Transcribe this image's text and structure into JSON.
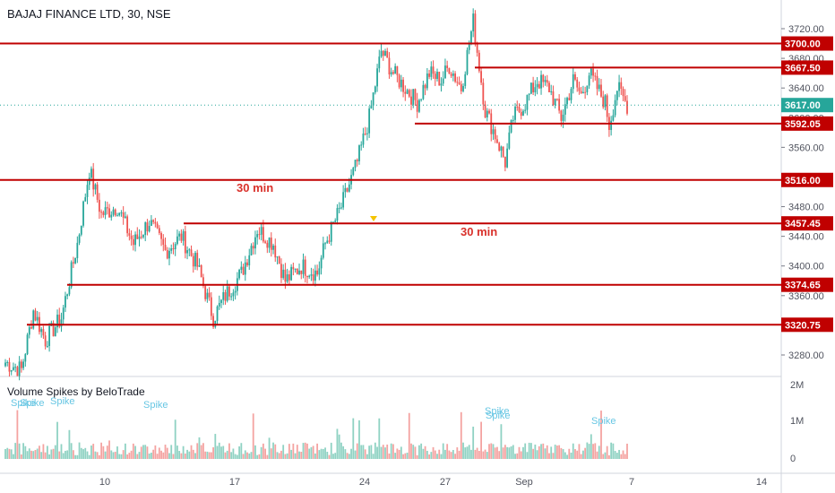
{
  "header": {
    "title": "BAJAJ FINANCE LTD, 30, NSE"
  },
  "indicator": {
    "title": "Volume Spikes by BeloTrade",
    "spike_label": "Spike"
  },
  "colors": {
    "bull": "#26a69a",
    "bear": "#ef5350",
    "vol_bull": "#8fd2c3",
    "vol_bear": "#f4a3a1",
    "level_line": "#c00000",
    "level_label_bg": "#c00000",
    "last_price_bg": "#26a69a",
    "annotation": "#d9312b",
    "spike_text": "#67c6e3",
    "marker": "#f5c400"
  },
  "chart_data": {
    "type": "candlestick",
    "y_axis": {
      "range": [
        3250,
        3765
      ],
      "ticks": [
        "3720.00",
        "3680.00",
        "3640.00",
        "3600.00",
        "3560.00",
        "3480.00",
        "3440.00",
        "3400.00",
        "3360.00",
        "3280.00"
      ]
    },
    "x_axis": {
      "ticks": [
        "10",
        "17",
        "24",
        "27",
        "Sep",
        "7",
        "14"
      ]
    },
    "levels": [
      "3700.00",
      "3667.50",
      "3592.05",
      "3516.00",
      "3457.45",
      "3374.65",
      "3320.75"
    ],
    "last_price": "3617.00",
    "annotations": [
      "30 min",
      "30 min"
    ],
    "volume_axis": {
      "ticks": [
        "2M",
        "1M",
        "0"
      ]
    },
    "spikes_count": 7
  }
}
